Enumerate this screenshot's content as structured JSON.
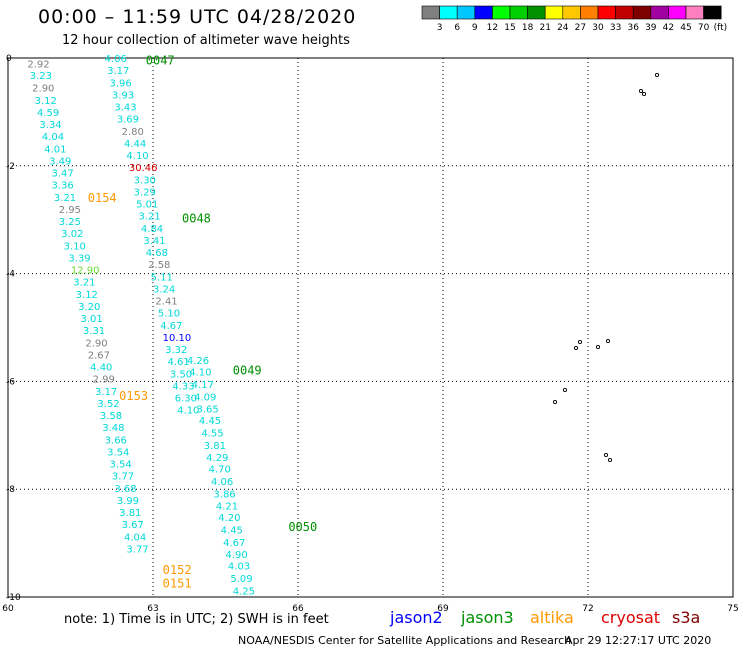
{
  "header": {
    "title": "00:00 – 11:59 UTC 04/28/2020",
    "subtitle": "12 hour collection of altimeter wave heights"
  },
  "colorbar": {
    "colors": [
      "#808080",
      "#00ffff",
      "#00c8ff",
      "#0000ff",
      "#00ff00",
      "#00d000",
      "#009000",
      "#ffff00",
      "#ffc800",
      "#ff8000",
      "#ff0000",
      "#c00000",
      "#800000",
      "#a000a0",
      "#ff00ff",
      "#ff80c0",
      "#000000"
    ],
    "labels": [
      "3",
      "6",
      "9",
      "12",
      "15",
      "18",
      "21",
      "24",
      "27",
      "30",
      "33",
      "36",
      "39",
      "42",
      "45",
      "70"
    ],
    "unit": "(ft)"
  },
  "footer": {
    "note": "note: 1) Time is in UTC; 2) SWH is in feet",
    "satellites": [
      {
        "name": "jason2",
        "color": "#0000ff"
      },
      {
        "name": "jason3",
        "color": "#009000"
      },
      {
        "name": "altika",
        "color": "#ff9900"
      },
      {
        "name": "cryosat",
        "color": "#e00000"
      },
      {
        "name": "s3a",
        "color": "#800000"
      }
    ],
    "credit": "NOAA/NESDIS Center for Satellite Applications and Research",
    "stamp": "Apr 29 12:27:17 UTC 2020"
  },
  "chart_data": {
    "type": "scatter",
    "title": "00:00 – 11:59 UTC 04/28/2020",
    "xlabel": "",
    "ylabel": "",
    "xlim": [
      60,
      75
    ],
    "ylim": [
      -10,
      0
    ],
    "xticks": [
      60,
      63,
      66,
      69,
      72,
      75
    ],
    "yticks": [
      0,
      -2,
      -4,
      -6,
      -8,
      -10
    ],
    "grid": true,
    "time_labels": [
      {
        "text": "0047",
        "x": 62.85,
        "y": -0.05,
        "color": "#009000"
      },
      {
        "text": "0154",
        "x": 61.65,
        "y": -2.6,
        "color": "#ff9900"
      },
      {
        "text": "0048",
        "x": 63.6,
        "y": -2.98,
        "color": "#009000"
      },
      {
        "text": "0153",
        "x": 62.3,
        "y": -6.27,
        "color": "#ff9900"
      },
      {
        "text": "0049",
        "x": 64.65,
        "y": -5.8,
        "color": "#009000"
      },
      {
        "text": "0050",
        "x": 65.8,
        "y": -8.7,
        "color": "#009000"
      },
      {
        "text": "0152",
        "x": 63.2,
        "y": -9.5,
        "color": "#ff9900"
      },
      {
        "text": "0151",
        "x": 63.2,
        "y": -9.75,
        "color": "#ff9900"
      }
    ],
    "series": [
      {
        "points": [
          {
            "x": 60.4,
            "y": -0.1,
            "v": "2.92",
            "c": "#808080"
          },
          {
            "x": 60.45,
            "y": -0.32,
            "v": "3.23",
            "c": "#00d8d8"
          },
          {
            "x": 60.5,
            "y": -0.55,
            "v": "2.90",
            "c": "#808080"
          },
          {
            "x": 60.55,
            "y": -0.78,
            "v": "3.12",
            "c": "#00d8d8"
          },
          {
            "x": 60.6,
            "y": -1.0,
            "v": "4.59",
            "c": "#00d8d8"
          },
          {
            "x": 60.65,
            "y": -1.22,
            "v": "3.34",
            "c": "#00d8d8"
          },
          {
            "x": 60.7,
            "y": -1.45,
            "v": "4.04",
            "c": "#00d8d8"
          },
          {
            "x": 60.75,
            "y": -1.68,
            "v": "4.01",
            "c": "#00d8d8"
          },
          {
            "x": 60.85,
            "y": -1.9,
            "v": "3.49",
            "c": "#00d8d8"
          },
          {
            "x": 60.9,
            "y": -2.12,
            "v": "3.47",
            "c": "#00d8d8"
          },
          {
            "x": 60.9,
            "y": -2.35,
            "v": "3.36",
            "c": "#00d8d8"
          },
          {
            "x": 60.95,
            "y": -2.58,
            "v": "3.21",
            "c": "#00d8d8"
          },
          {
            "x": 61.05,
            "y": -2.8,
            "v": "2.95",
            "c": "#808080"
          },
          {
            "x": 61.05,
            "y": -3.02,
            "v": "3.25",
            "c": "#00d8d8"
          },
          {
            "x": 61.1,
            "y": -3.25,
            "v": "3.02",
            "c": "#00d8d8"
          },
          {
            "x": 61.15,
            "y": -3.48,
            "v": "3.10",
            "c": "#00d8d8"
          },
          {
            "x": 61.25,
            "y": -3.7,
            "v": "3.39",
            "c": "#00d8d8"
          },
          {
            "x": 61.3,
            "y": -3.92,
            "v": "12.90",
            "c": "#66dd33"
          },
          {
            "x": 61.35,
            "y": -4.15,
            "v": "3.21",
            "c": "#00d8d8"
          },
          {
            "x": 61.4,
            "y": -4.38,
            "v": "3.12",
            "c": "#00d8d8"
          },
          {
            "x": 61.45,
            "y": -4.6,
            "v": "3.20",
            "c": "#00d8d8"
          },
          {
            "x": 61.5,
            "y": -4.82,
            "v": "3.01",
            "c": "#00d8d8"
          },
          {
            "x": 61.55,
            "y": -5.05,
            "v": "3.31",
            "c": "#00d8d8"
          },
          {
            "x": 61.6,
            "y": -5.28,
            "v": "2.90",
            "c": "#808080"
          },
          {
            "x": 61.65,
            "y": -5.5,
            "v": "2.67",
            "c": "#808080"
          },
          {
            "x": 61.7,
            "y": -5.72,
            "v": "4.40",
            "c": "#00d8d8"
          },
          {
            "x": 61.75,
            "y": -5.95,
            "v": "2.99",
            "c": "#808080"
          },
          {
            "x": 61.8,
            "y": -6.18,
            "v": "3.17",
            "c": "#00d8d8"
          },
          {
            "x": 61.85,
            "y": -6.4,
            "v": "3.52",
            "c": "#00d8d8"
          },
          {
            "x": 61.9,
            "y": -6.62,
            "v": "3.58",
            "c": "#00d8d8"
          },
          {
            "x": 61.95,
            "y": -6.85,
            "v": "3.48",
            "c": "#00d8d8"
          },
          {
            "x": 62.0,
            "y": -7.08,
            "v": "3.66",
            "c": "#00d8d8"
          },
          {
            "x": 62.05,
            "y": -7.3,
            "v": "3.54",
            "c": "#00d8d8"
          },
          {
            "x": 62.1,
            "y": -7.52,
            "v": "3.54",
            "c": "#00d8d8"
          },
          {
            "x": 62.15,
            "y": -7.75,
            "v": "3.77",
            "c": "#00d8d8"
          },
          {
            "x": 62.2,
            "y": -7.98,
            "v": "3.68",
            "c": "#00d8d8"
          },
          {
            "x": 62.25,
            "y": -8.2,
            "v": "3.99",
            "c": "#00d8d8"
          },
          {
            "x": 62.3,
            "y": -8.42,
            "v": "3.81",
            "c": "#00d8d8"
          },
          {
            "x": 62.35,
            "y": -8.65,
            "v": "3.67",
            "c": "#00d8d8"
          },
          {
            "x": 62.4,
            "y": -8.88,
            "v": "4.04",
            "c": "#00d8d8"
          },
          {
            "x": 62.45,
            "y": -9.1,
            "v": "3.77",
            "c": "#00d8d8"
          }
        ]
      },
      {
        "points": [
          {
            "x": 62.0,
            "y": 0.0,
            "v": "4.06",
            "c": "#00d8d8"
          },
          {
            "x": 62.05,
            "y": -0.22,
            "v": "3.17",
            "c": "#00d8d8"
          },
          {
            "x": 62.1,
            "y": -0.45,
            "v": "3.96",
            "c": "#00d8d8"
          },
          {
            "x": 62.15,
            "y": -0.68,
            "v": "3.93",
            "c": "#00d8d8"
          },
          {
            "x": 62.2,
            "y": -0.9,
            "v": "3.43",
            "c": "#00d8d8"
          },
          {
            "x": 62.25,
            "y": -1.12,
            "v": "3.69",
            "c": "#00d8d8"
          },
          {
            "x": 62.35,
            "y": -1.35,
            "v": "2.80",
            "c": "#808080"
          },
          {
            "x": 62.4,
            "y": -1.58,
            "v": "4.44",
            "c": "#00d8d8"
          },
          {
            "x": 62.45,
            "y": -1.8,
            "v": "4.10",
            "c": "#00d8d8"
          },
          {
            "x": 62.5,
            "y": -2.02,
            "v": "30.46",
            "c": "#e00000"
          },
          {
            "x": 62.6,
            "y": -2.25,
            "v": "3.30",
            "c": "#00d8d8"
          },
          {
            "x": 62.6,
            "y": -2.48,
            "v": "3.29",
            "c": "#00d8d8"
          },
          {
            "x": 62.65,
            "y": -2.7,
            "v": "5.01",
            "c": "#00d8d8"
          },
          {
            "x": 62.7,
            "y": -2.92,
            "v": "3.21",
            "c": "#00d8d8"
          },
          {
            "x": 62.75,
            "y": -3.15,
            "v": "4.84",
            "c": "#00d8d8"
          },
          {
            "x": 62.8,
            "y": -3.38,
            "v": "3.41",
            "c": "#00d8d8"
          },
          {
            "x": 62.85,
            "y": -3.6,
            "v": "4.68",
            "c": "#00d8d8"
          },
          {
            "x": 62.9,
            "y": -3.82,
            "v": "2.58",
            "c": "#808080"
          },
          {
            "x": 62.95,
            "y": -4.05,
            "v": "5.11",
            "c": "#00d8d8"
          },
          {
            "x": 63.0,
            "y": -4.28,
            "v": "3.24",
            "c": "#00d8d8"
          },
          {
            "x": 63.05,
            "y": -4.5,
            "v": "2.41",
            "c": "#808080"
          },
          {
            "x": 63.1,
            "y": -4.72,
            "v": "5.10",
            "c": "#00d8d8"
          },
          {
            "x": 63.15,
            "y": -4.95,
            "v": "4.67",
            "c": "#00d8d8"
          },
          {
            "x": 63.2,
            "y": -5.18,
            "v": "10.10",
            "c": "#0000ff"
          },
          {
            "x": 63.25,
            "y": -5.4,
            "v": "3.32",
            "c": "#00d8d8"
          },
          {
            "x": 63.3,
            "y": -5.62,
            "v": "4.61",
            "c": "#00d8d8"
          },
          {
            "x": 63.35,
            "y": -5.85,
            "v": "3.50",
            "c": "#00d8d8"
          },
          {
            "x": 63.4,
            "y": -6.08,
            "v": "4.33",
            "c": "#00d8d8"
          },
          {
            "x": 63.45,
            "y": -6.3,
            "v": "6.30",
            "c": "#00d8d8"
          },
          {
            "x": 63.5,
            "y": -6.52,
            "v": "4.10",
            "c": "#00d8d8"
          }
        ]
      },
      {
        "points": [
          {
            "x": 63.7,
            "y": -5.6,
            "v": "4.26",
            "c": "#00d8d8"
          },
          {
            "x": 63.75,
            "y": -5.82,
            "v": "4.10",
            "c": "#00d8d8"
          },
          {
            "x": 63.8,
            "y": -6.05,
            "v": "4.17",
            "c": "#00d8d8"
          },
          {
            "x": 63.85,
            "y": -6.28,
            "v": "4.09",
            "c": "#00d8d8"
          },
          {
            "x": 63.9,
            "y": -6.5,
            "v": "3.65",
            "c": "#00d8d8"
          },
          {
            "x": 63.95,
            "y": -6.72,
            "v": "4.45",
            "c": "#00d8d8"
          },
          {
            "x": 64.0,
            "y": -6.95,
            "v": "4.55",
            "c": "#00d8d8"
          },
          {
            "x": 64.05,
            "y": -7.18,
            "v": "3.81",
            "c": "#00d8d8"
          },
          {
            "x": 64.1,
            "y": -7.4,
            "v": "4.29",
            "c": "#00d8d8"
          },
          {
            "x": 64.15,
            "y": -7.62,
            "v": "4.70",
            "c": "#00d8d8"
          },
          {
            "x": 64.2,
            "y": -7.85,
            "v": "4.06",
            "c": "#00d8d8"
          },
          {
            "x": 64.25,
            "y": -8.08,
            "v": "3.86",
            "c": "#00d8d8"
          },
          {
            "x": 64.3,
            "y": -8.3,
            "v": "4.21",
            "c": "#00d8d8"
          },
          {
            "x": 64.35,
            "y": -8.52,
            "v": "4.20",
            "c": "#00d8d8"
          },
          {
            "x": 64.4,
            "y": -8.75,
            "v": "4.45",
            "c": "#00d8d8"
          },
          {
            "x": 64.45,
            "y": -8.98,
            "v": "4.67",
            "c": "#00d8d8"
          },
          {
            "x": 64.5,
            "y": -9.2,
            "v": "4.90",
            "c": "#00d8d8"
          },
          {
            "x": 64.55,
            "y": -9.42,
            "v": "4.03",
            "c": "#00d8d8"
          },
          {
            "x": 64.6,
            "y": -9.65,
            "v": "5.09",
            "c": "#00d8d8"
          },
          {
            "x": 64.65,
            "y": -9.88,
            "v": "4.25",
            "c": "#00d8d8"
          }
        ]
      }
    ]
  }
}
